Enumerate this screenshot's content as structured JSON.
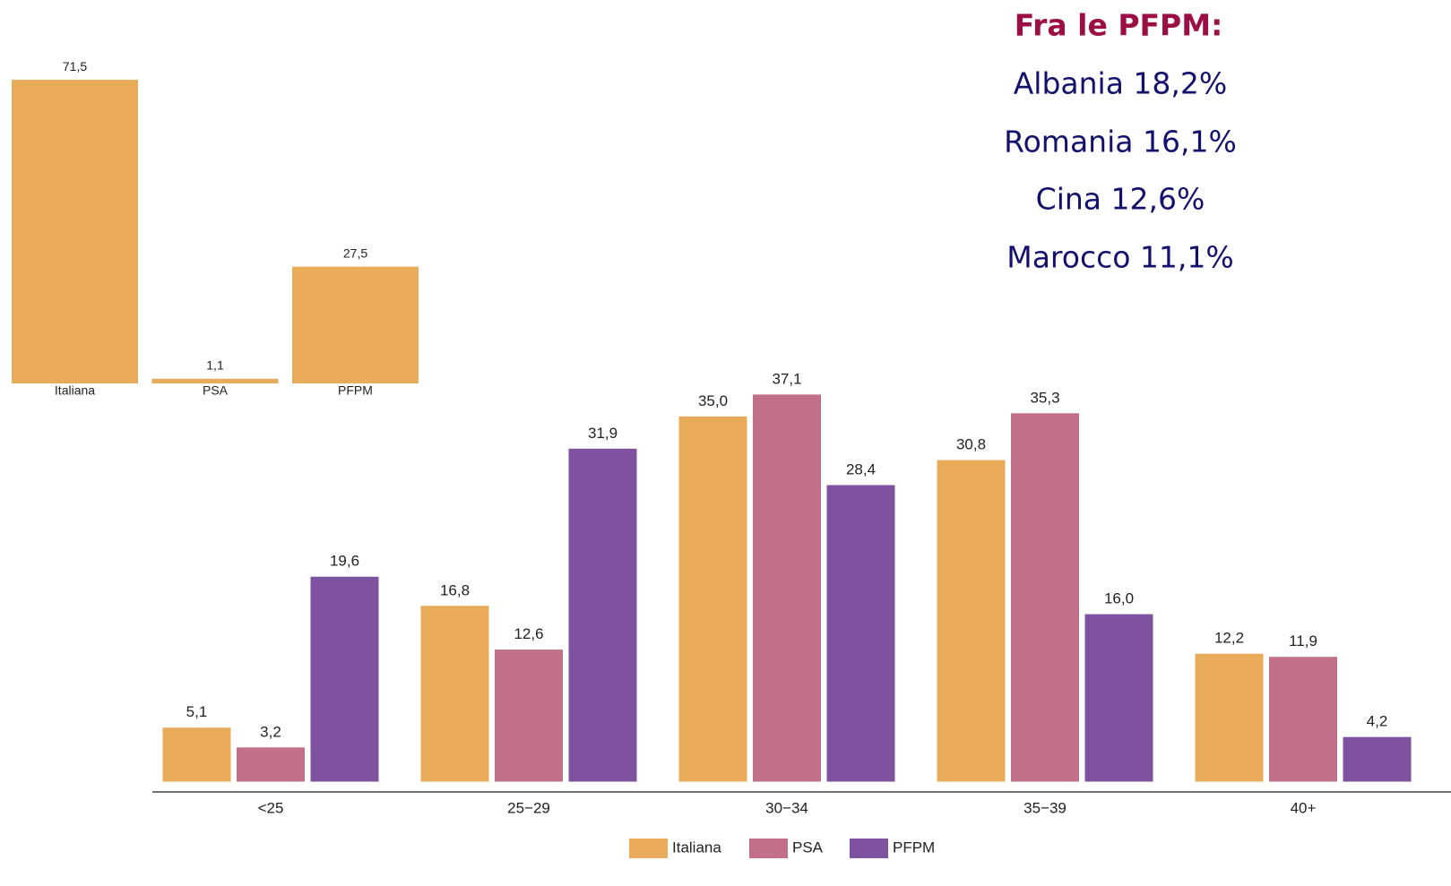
{
  "chart_data": [
    {
      "type": "bar",
      "categories": [
        "Italiana",
        "PSA",
        "PFPM"
      ],
      "values": [
        71.5,
        1.1,
        27.5
      ],
      "value_labels": [
        "71,5",
        "1,1",
        "27,5"
      ],
      "color": "#e8ab5a"
    },
    {
      "type": "grouped_bar",
      "categories": [
        "<25",
        "25−29",
        "30−34",
        "35−39",
        "40+"
      ],
      "series": [
        {
          "name": "Italiana",
          "color": "#e8ab5a",
          "values": [
            5.1,
            16.8,
            35.0,
            30.8,
            12.2
          ],
          "value_labels": [
            "5,1",
            "16,8",
            "35,0",
            "30,8",
            "12,2"
          ]
        },
        {
          "name": "PSA",
          "color": "#c2708a",
          "values": [
            3.2,
            12.6,
            37.1,
            35.3,
            11.9
          ],
          "value_labels": [
            "3,2",
            "12,6",
            "37,1",
            "35,3",
            "11,9"
          ]
        },
        {
          "name": "PFPM",
          "color": "#7e52a0",
          "values": [
            19.6,
            31.9,
            28.4,
            16.0,
            4.2
          ],
          "value_labels": [
            "19,6",
            "31,9",
            "28,4",
            "16,0",
            "4,2"
          ]
        }
      ],
      "legend": "bottom"
    }
  ],
  "notes": {
    "title": "Fra le PFPM:",
    "items": [
      "Albania 18,2%",
      "Romania 16,1%",
      "Cina 12,6%",
      "Marocco 11,1%"
    ]
  }
}
